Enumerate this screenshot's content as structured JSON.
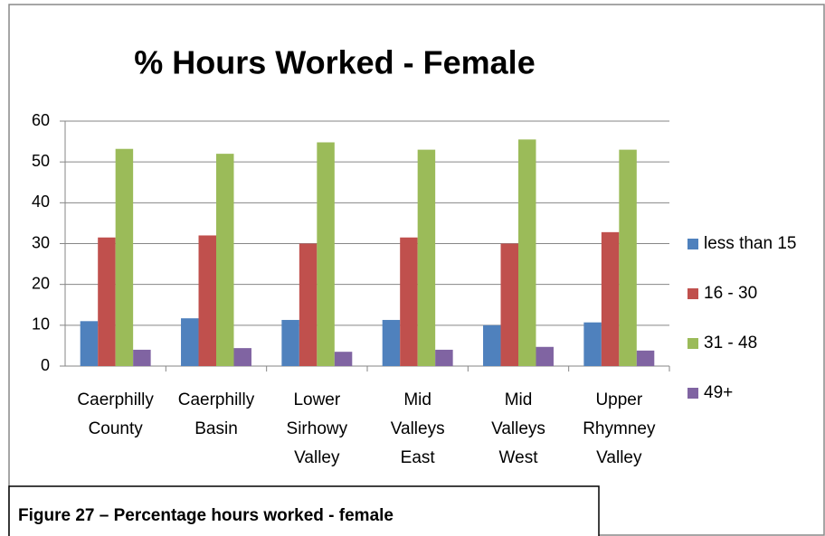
{
  "chart_data": {
    "type": "bar",
    "title": "% Hours Worked - Female",
    "categories": [
      "Caerphilly County",
      "Caerphilly Basin",
      "Lower Sirhowy Valley",
      "Mid Valleys East",
      "Mid Valleys West",
      "Upper Rhymney Valley"
    ],
    "series": [
      {
        "name": "less than 15",
        "color": "#4f81bd",
        "values": [
          11,
          11.7,
          11.3,
          11.3,
          10,
          10.7
        ]
      },
      {
        "name": "16 - 30",
        "color": "#c0504d",
        "values": [
          31.5,
          32,
          30,
          31.5,
          30,
          32.8
        ]
      },
      {
        "name": "31 - 48",
        "color": "#9bbb59",
        "values": [
          53.2,
          52,
          54.8,
          53,
          55.5,
          53
        ]
      },
      {
        "name": "49+",
        "color": "#8064a2",
        "values": [
          4,
          4.4,
          3.5,
          4,
          4.7,
          3.8
        ]
      }
    ],
    "ylim": [
      0,
      60
    ],
    "yticks": [
      0,
      10,
      20,
      30,
      40,
      50,
      60
    ],
    "grid": true,
    "legend": "right"
  },
  "caption": "Figure 27 – Percentage hours worked - female"
}
